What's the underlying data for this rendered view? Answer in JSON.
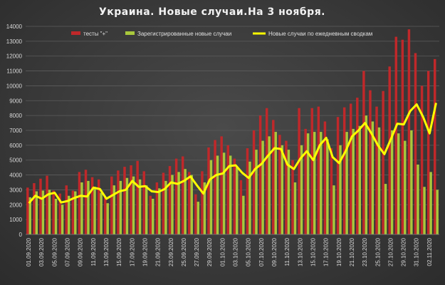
{
  "chart_data": {
    "type": "bar",
    "title": "Украина. Новые случаи.На 3 ноября.",
    "xlabel": "",
    "ylabel": "",
    "ylim": [
      0,
      14000
    ],
    "yticks": [
      0,
      1000,
      2000,
      3000,
      4000,
      5000,
      6000,
      7000,
      8000,
      9000,
      10000,
      11000,
      12000,
      13000,
      14000
    ],
    "xtick_labels": [
      "01.09.2020",
      "03.09.2020",
      "05.09.2020",
      "07.09.2020",
      "09.09.2020",
      "11.09.2020",
      "13.09.2020",
      "15.09.2020",
      "17.09.2020",
      "19.09.2020",
      "21.09.2020",
      "23.09.2020",
      "25.09.2020",
      "27.09.2020",
      "29.09.2020",
      "01.10.2020",
      "03.10.2020",
      "05.10.2020",
      "07.10.2020",
      "09.10.2020",
      "11.10.2020",
      "13.10.2020",
      "15.10.2020",
      "17.10.2020",
      "19.10.2020",
      "21.10.2020",
      "23.10.2020",
      "25.10.2020",
      "27.10.2020",
      "29.10.2020",
      "31.10.2020",
      "02.11.2020"
    ],
    "grid": true,
    "legend_position": "top",
    "colors": {
      "red": "#c0282a",
      "green": "#a8c83c",
      "yellow": "#ffff00"
    },
    "series": [
      {
        "name": "тесты \"+\"",
        "kind": "bar",
        "values": [
          3150,
          3450,
          3750,
          3950,
          2950,
          2750,
          3300,
          2950,
          4200,
          4350,
          3850,
          3700,
          2500,
          3900,
          4300,
          4550,
          4650,
          4950,
          4250,
          2600,
          3500,
          4150,
          4600,
          5100,
          5250,
          4200,
          2700,
          4250,
          5850,
          6350,
          6600,
          6000,
          5100,
          3650,
          5800,
          7000,
          8000,
          8500,
          7700,
          6700,
          6300,
          5000,
          8500,
          7100,
          8500,
          8600,
          7600,
          5800,
          7900,
          8550,
          8800,
          9200,
          11000,
          9700,
          8600,
          9650,
          11300,
          13300,
          13100,
          13800,
          12200,
          10000,
          11000,
          11800
        ]
      },
      {
        "name": "Зарегистрированные новые случаи",
        "kind": "bar",
        "values": [
          2500,
          2900,
          2950,
          3000,
          2400,
          2000,
          2600,
          2900,
          3500,
          3600,
          3200,
          2800,
          2100,
          3300,
          3600,
          3800,
          3900,
          3700,
          3300,
          2400,
          3100,
          3600,
          4000,
          4200,
          4400,
          4000,
          2200,
          3500,
          5000,
          5300,
          5500,
          5300,
          4500,
          2600,
          4900,
          5700,
          6300,
          6600,
          6900,
          6000,
          5700,
          3500,
          6000,
          6800,
          6900,
          6900,
          6400,
          3300,
          6000,
          6900,
          7100,
          7300,
          8000,
          7600,
          7200,
          3400,
          7000,
          6800,
          6300,
          7000,
          4700,
          3200,
          4200,
          3000
        ]
      },
      {
        "name": "Новые случаи по ежедневным сводкам",
        "kind": "line",
        "values": [
          2100,
          2600,
          2400,
          2700,
          2800,
          2150,
          2250,
          2450,
          2600,
          2550,
          3150,
          3050,
          2400,
          2650,
          2900,
          3000,
          3600,
          3200,
          3250,
          2900,
          2850,
          3050,
          3500,
          3400,
          3600,
          3900,
          3300,
          2750,
          3700,
          4000,
          4100,
          4600,
          4650,
          4150,
          3800,
          4400,
          4750,
          5300,
          5800,
          5750,
          4700,
          4400,
          5100,
          5600,
          5000,
          6000,
          6500,
          5200,
          4800,
          5600,
          6600,
          7000,
          7500,
          6800,
          6000,
          5400,
          6400,
          7450,
          7400,
          8300,
          8750,
          7900,
          6800,
          8850
        ]
      }
    ]
  }
}
